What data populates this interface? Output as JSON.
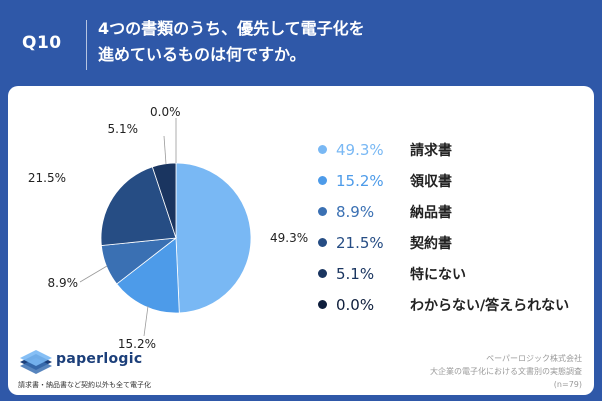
{
  "header": {
    "question_number": "Q10",
    "question_line1": "4つの書類のうち、優先して電子化を",
    "question_line2": "進めているものは何ですか。"
  },
  "chart_data": {
    "type": "pie",
    "unit": "%",
    "slices": [
      {
        "label": "請求書",
        "value": 49.3,
        "display": "49.3%",
        "color": "#79b8f4"
      },
      {
        "label": "領収書",
        "value": 15.2,
        "display": "15.2%",
        "color": "#4d9be9"
      },
      {
        "label": "納品書",
        "value": 8.9,
        "display": "8.9%",
        "color": "#3a70b3"
      },
      {
        "label": "契約書",
        "value": 21.5,
        "display": "21.5%",
        "color": "#264d84"
      },
      {
        "label": "特にない",
        "value": 5.1,
        "display": "5.1%",
        "color": "#1a3560"
      },
      {
        "label": "わからない/答えられない",
        "value": 0.0,
        "display": "0.0%",
        "color": "#0e1e3c"
      }
    ]
  },
  "logo": {
    "name": "paperlogic",
    "tagline": "請求書・納品書など契約以外も全て電子化"
  },
  "source": {
    "line1": "ペーパーロジック株式会社",
    "line2": "大企業の電子化における文書別の実態調査",
    "line3": "(n=79)"
  },
  "colors": {
    "header_bg": "#2f58a8",
    "panel_bg": "#ffffff"
  }
}
